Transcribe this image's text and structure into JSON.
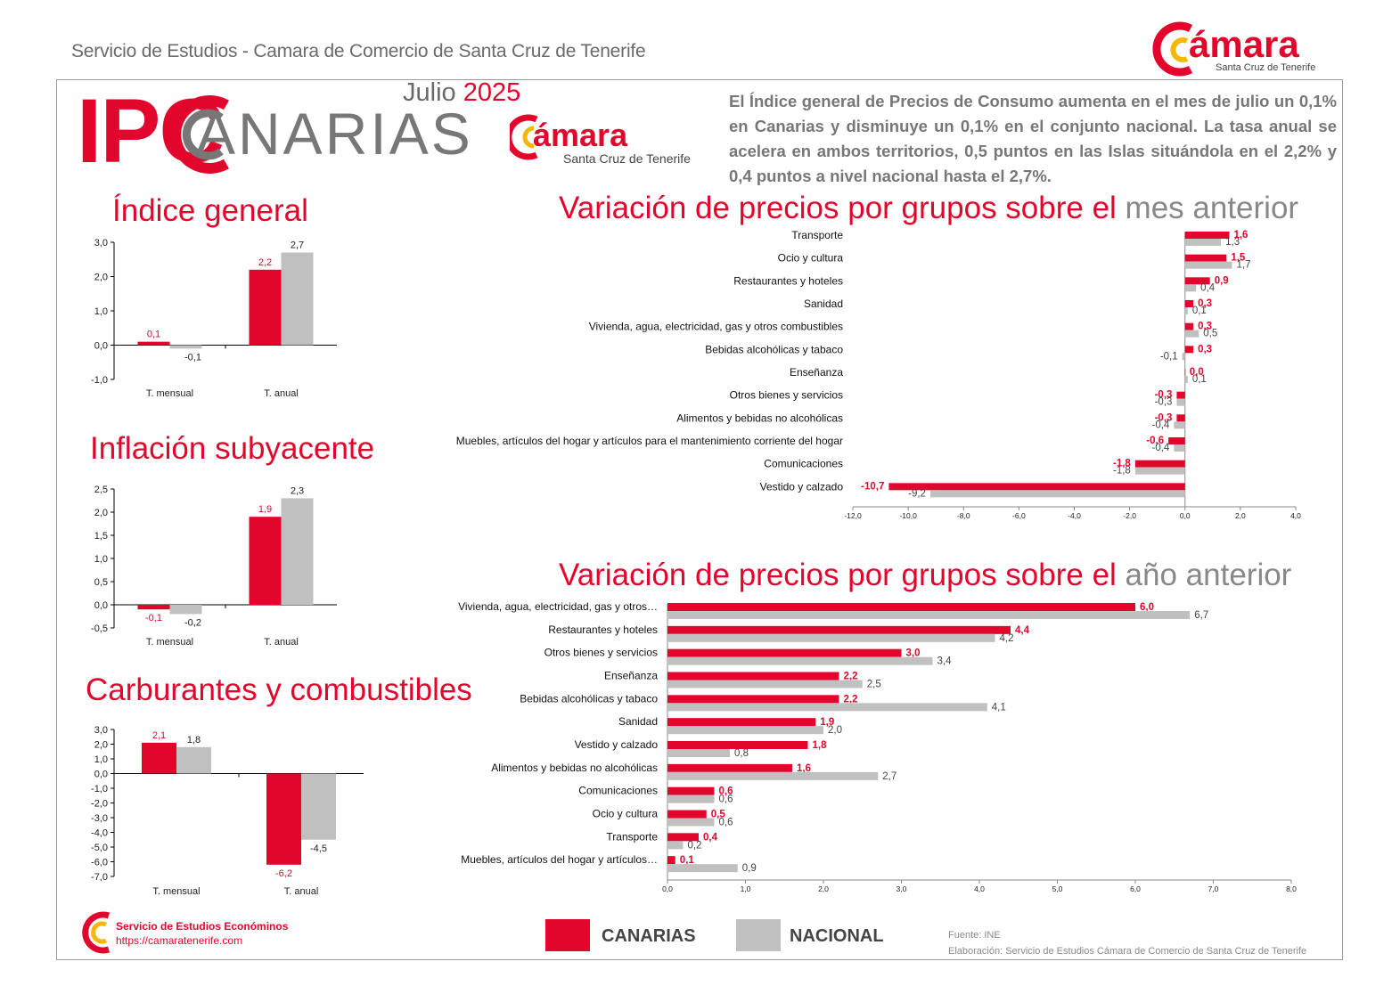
{
  "header": {
    "title": "Servicio de Estudios - Camara de Comercio de Santa Cruz de Tenerife",
    "logo_word": "ámara",
    "logo_subtitle": "Santa Cruz de Tenerife"
  },
  "title_block": {
    "ipc": "IPC",
    "canarias": "ANARIAS",
    "month": "Julio",
    "year": "2025",
    "logo_word": "ámara",
    "logo_subtitle": "Santa Cruz de Tenerife"
  },
  "summary": "El Índice general de Precios de Consumo aumenta en el mes de julio un 0,1% en Canarias y disminuye un 0,1% en el conjunto nacional. La tasa anual se acelera en ambos territorios, 0,5 puntos en las Islas situándola en el 2,2% y 0,4 puntos a nivel nacional hasta el 2,7%.",
  "sections": {
    "indice": "Índice general",
    "subyacente": "Inflación subyacente",
    "carburantes": "Carburantes y combustibles",
    "mes_red": "Variación de precios por grupos sobre el ",
    "mes_gray": "mes anterior",
    "anio_red": "Variación de precios por grupos sobre el ",
    "anio_gray": "año anterior"
  },
  "colors": {
    "canarias": "#e2062c",
    "nacional": "#c0c0c0",
    "axis": "#000000"
  },
  "legend": {
    "canarias": "CANARIAS",
    "nacional": "NACIONAL"
  },
  "footer": {
    "source": "Fuente: INE",
    "elaboration": "Elaboración: Servicio de Estudios Cámara de Comercio de Santa Cruz de Tenerife",
    "service_name": "Servicio de Estudios Económinos",
    "url": "https://camaratenerife.com"
  },
  "chart_data": [
    {
      "id": "indice",
      "type": "bar",
      "categories": [
        "T. mensual",
        "T. anual"
      ],
      "series": [
        {
          "name": "CANARIAS",
          "values": [
            0.1,
            2.2
          ],
          "labels": [
            "0,1",
            "2,2"
          ]
        },
        {
          "name": "NACIONAL",
          "values": [
            -0.1,
            2.7
          ],
          "labels": [
            "-0,1",
            "2,7"
          ]
        }
      ],
      "ylim": [
        -1.0,
        3.0
      ],
      "yticks": [
        3.0,
        2.0,
        1.0,
        0.0,
        -1.0
      ],
      "ytick_labels": [
        "3,0",
        "2,0",
        "1,0",
        "0,0",
        "-1,0"
      ]
    },
    {
      "id": "subyacente",
      "type": "bar",
      "categories": [
        "T. mensual",
        "T. anual"
      ],
      "series": [
        {
          "name": "CANARIAS",
          "values": [
            -0.1,
            1.9
          ],
          "labels": [
            "-0,1",
            "1,9"
          ]
        },
        {
          "name": "NACIONAL",
          "values": [
            -0.2,
            2.3
          ],
          "labels": [
            "-0,2",
            "2,3"
          ]
        }
      ],
      "ylim": [
        -0.5,
        2.5
      ],
      "yticks": [
        2.5,
        2.0,
        1.5,
        1.0,
        0.5,
        0.0,
        -0.5
      ],
      "ytick_labels": [
        "2,5",
        "2,0",
        "1,5",
        "1,0",
        "0,5",
        "0,0",
        "-0,5"
      ]
    },
    {
      "id": "carburantes",
      "type": "bar",
      "categories": [
        "T. mensual",
        "T. anual"
      ],
      "series": [
        {
          "name": "CANARIAS",
          "values": [
            2.1,
            -6.2
          ],
          "labels": [
            "2,1",
            "-6,2"
          ]
        },
        {
          "name": "NACIONAL",
          "values": [
            1.8,
            -4.5
          ],
          "labels": [
            "1,8",
            "-4,5"
          ]
        }
      ],
      "ylim": [
        -7.0,
        3.0
      ],
      "yticks": [
        3.0,
        2.0,
        1.0,
        0.0,
        -1.0,
        -2.0,
        -3.0,
        -4.0,
        -5.0,
        -6.0,
        -7.0
      ],
      "ytick_labels": [
        "3,0",
        "2,0",
        "1,0",
        "0,0",
        "-1,0",
        "-2,0",
        "-3,0",
        "-4,0",
        "-5,0",
        "-6,0",
        "-7,0"
      ]
    },
    {
      "id": "mensual_grupos",
      "type": "bar",
      "orientation": "horizontal",
      "categories": [
        "Transporte",
        "Ocio y cultura",
        "Restaurantes y hoteles",
        "Sanidad",
        "Vivienda, agua, electricidad, gas y otros combustibles",
        "Bebidas alcohólicas y tabaco",
        "Enseñanza",
        "Otros bienes y servicios",
        "Alimentos y bebidas no alcohólicas",
        "Muebles, artículos del hogar y artículos para el mantenimiento corriente del hogar",
        "Comunicaciones",
        "Vestido y calzado"
      ],
      "series": [
        {
          "name": "CANARIAS",
          "values": [
            1.6,
            1.5,
            0.9,
            0.3,
            0.3,
            0.3,
            0.0,
            -0.3,
            -0.3,
            -0.6,
            -1.8,
            -10.7
          ],
          "labels": [
            "1,6",
            "1,5",
            "0,9",
            "0,3",
            "0,3",
            "0,3",
            "0,0",
            "-0,3",
            "-0,3",
            "-0,6",
            "-1,8",
            "-10,7"
          ]
        },
        {
          "name": "NACIONAL",
          "values": [
            1.3,
            1.7,
            0.4,
            0.1,
            0.5,
            -0.1,
            0.1,
            -0.3,
            -0.4,
            -0.4,
            -1.8,
            -9.2
          ],
          "labels": [
            "1,3",
            "1,7",
            "0,4",
            "0,1",
            "0,5",
            "-0,1",
            "0,1",
            "-0,3",
            "-0,4",
            "-0,4",
            "-1,8",
            "-9,2"
          ]
        }
      ],
      "xlim": [
        -12.0,
        4.0
      ],
      "xticks": [
        -12.0,
        -10.0,
        -8.0,
        -6.0,
        -4.0,
        -2.0,
        0.0,
        2.0,
        4.0
      ],
      "xtick_labels": [
        "-12,0",
        "-10,0",
        "-8,0",
        "-6,0",
        "-4,0",
        "-2,0",
        "0,0",
        "2,0",
        "4,0"
      ]
    },
    {
      "id": "anual_grupos",
      "type": "bar",
      "orientation": "horizontal",
      "categories": [
        "Vivienda, agua, electricidad, gas y otros…",
        "Restaurantes y hoteles",
        "Otros bienes y servicios",
        "Enseñanza",
        "Bebidas alcohólicas y tabaco",
        "Sanidad",
        "Vestido y calzado",
        "Alimentos y bebidas no alcohólicas",
        "Comunicaciones",
        "Ocio y cultura",
        "Transporte",
        "Muebles, artículos del hogar y artículos…"
      ],
      "series": [
        {
          "name": "CANARIAS",
          "values": [
            6.0,
            4.4,
            3.0,
            2.2,
            2.2,
            1.9,
            1.8,
            1.6,
            0.6,
            0.5,
            0.4,
            0.1
          ],
          "labels": [
            "6,0",
            "4,4",
            "3,0",
            "2,2",
            "2,2",
            "1,9",
            "1,8",
            "1,6",
            "0,6",
            "0,5",
            "0,4",
            "0,1"
          ]
        },
        {
          "name": "NACIONAL",
          "values": [
            6.7,
            4.2,
            3.4,
            2.5,
            4.1,
            2.0,
            0.8,
            2.7,
            0.6,
            0.6,
            0.2,
            0.9
          ],
          "labels": [
            "6,7",
            "4,2",
            "3,4",
            "2,5",
            "4,1",
            "2,0",
            "0,8",
            "2,7",
            "0,6",
            "0,6",
            "0,2",
            "0,9"
          ]
        }
      ],
      "xlim": [
        0.0,
        8.0
      ],
      "xticks": [
        0.0,
        1.0,
        2.0,
        3.0,
        4.0,
        5.0,
        6.0,
        7.0,
        8.0
      ],
      "xtick_labels": [
        "0,0",
        "1,0",
        "2,0",
        "3,0",
        "4,0",
        "5,0",
        "6,0",
        "7,0",
        "8,0"
      ]
    }
  ]
}
